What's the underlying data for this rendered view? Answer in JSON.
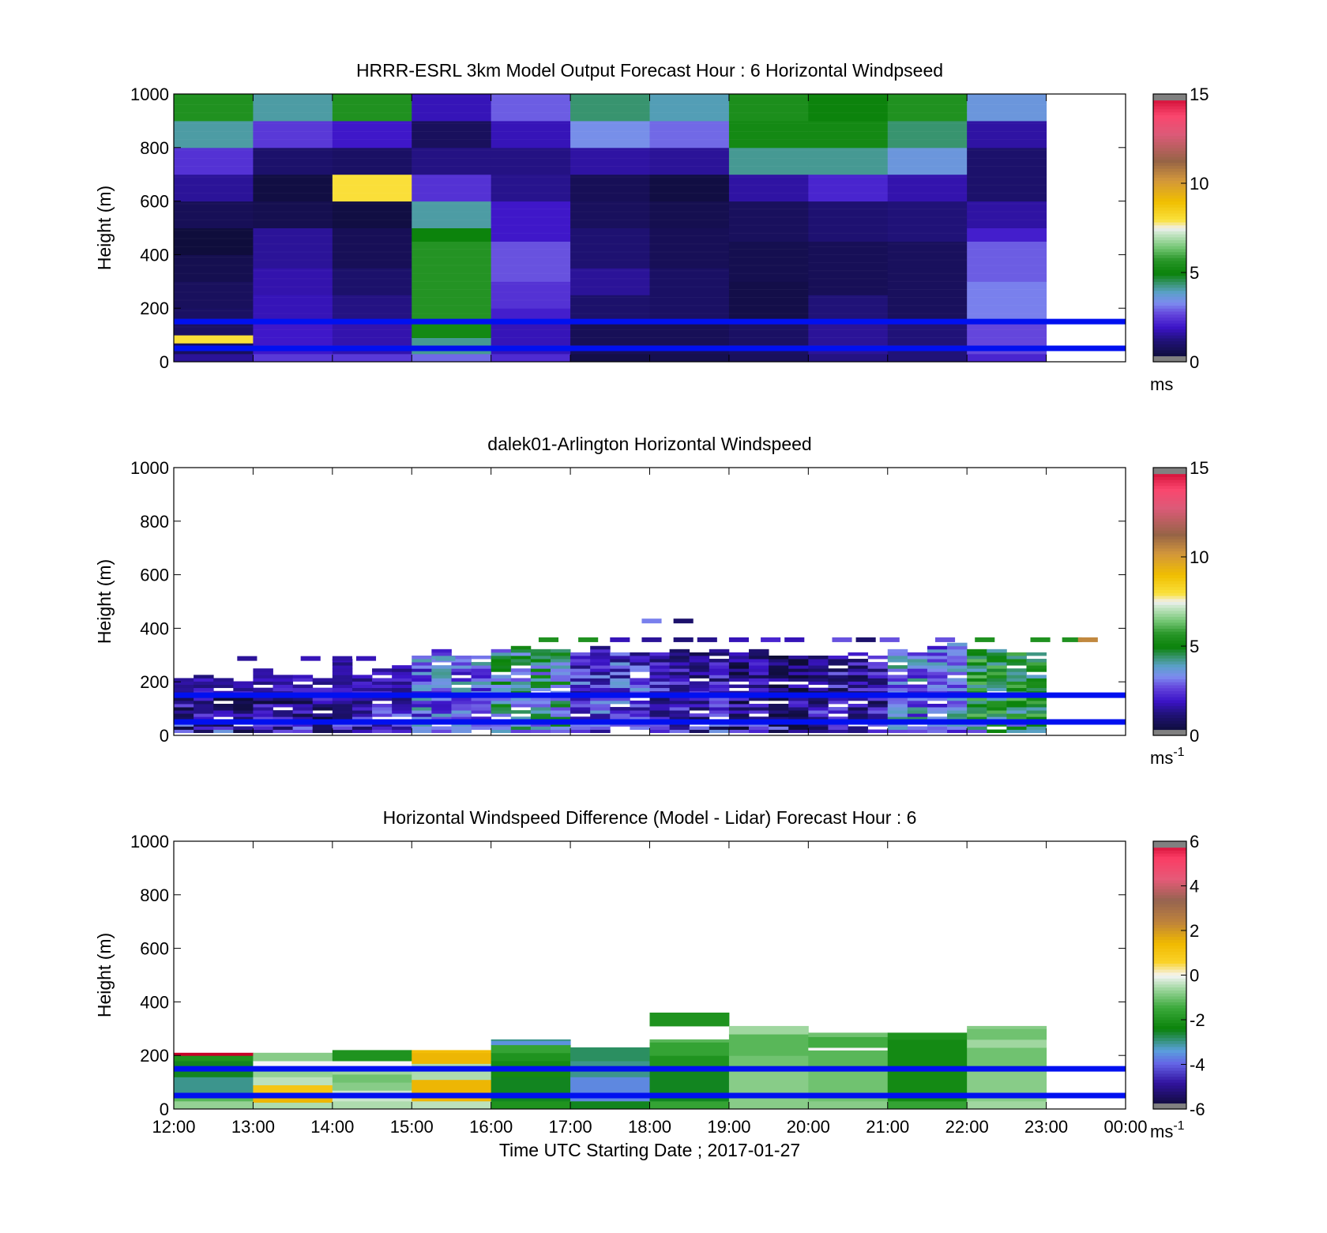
{
  "chart_data": [
    {
      "type": "heatmap",
      "title": "HRRR-ESRL 3km Model Output   Forecast Hour : 6 Horizontal Windpseed",
      "ylabel": "Height (m)",
      "ylim": [
        0,
        1000
      ],
      "yticks": [
        "0",
        "200",
        "400",
        "600",
        "800",
        "1000"
      ],
      "xticks": [],
      "x_range_utc_hours": [
        12,
        24
      ],
      "colorbar": {
        "range": [
          0,
          15
        ],
        "ticks": [
          "0",
          "5",
          "10",
          "15"
        ],
        "unit": "ms",
        "unit_sup": ""
      },
      "reference_lines_m": [
        50,
        150
      ],
      "reference_line_color": "#0010f0",
      "cells_hourly_bins_from_12utc": [
        [
          [
            0,
            30,
            1.5
          ],
          [
            30,
            70,
            0.8
          ],
          [
            70,
            100,
            8.0
          ],
          [
            100,
            200,
            0.9
          ],
          [
            200,
            300,
            0.8
          ],
          [
            300,
            400,
            0.6
          ],
          [
            400,
            500,
            0.3
          ],
          [
            500,
            600,
            0.7
          ],
          [
            600,
            700,
            1.5
          ],
          [
            700,
            800,
            2.4
          ],
          [
            800,
            900,
            4.1
          ],
          [
            900,
            1000,
            5.5
          ]
        ],
        [
          [
            0,
            30,
            2.5
          ],
          [
            30,
            150,
            2.0
          ],
          [
            150,
            250,
            1.8
          ],
          [
            250,
            350,
            1.7
          ],
          [
            350,
            500,
            1.5
          ],
          [
            500,
            600,
            0.6
          ],
          [
            600,
            700,
            0.4
          ],
          [
            700,
            800,
            1.0
          ],
          [
            800,
            900,
            2.5
          ],
          [
            900,
            1000,
            4.1
          ]
        ],
        [
          [
            0,
            30,
            2.5
          ],
          [
            30,
            150,
            1.7
          ],
          [
            150,
            250,
            1.3
          ],
          [
            250,
            350,
            1.0
          ],
          [
            350,
            500,
            0.7
          ],
          [
            500,
            600,
            0.4
          ],
          [
            600,
            700,
            8.0
          ],
          [
            700,
            800,
            0.9
          ],
          [
            800,
            900,
            2.0
          ],
          [
            900,
            1000,
            5.5
          ]
        ],
        [
          [
            0,
            30,
            3.0
          ],
          [
            30,
            90,
            4.2
          ],
          [
            90,
            150,
            5.2
          ],
          [
            150,
            450,
            5.6
          ],
          [
            450,
            500,
            5.0
          ],
          [
            500,
            600,
            4.1
          ],
          [
            600,
            700,
            2.4
          ],
          [
            700,
            800,
            1.3
          ],
          [
            800,
            900,
            0.8
          ],
          [
            900,
            1000,
            1.8
          ]
        ],
        [
          [
            0,
            30,
            2.3
          ],
          [
            30,
            150,
            1.8
          ],
          [
            150,
            200,
            2.1
          ],
          [
            200,
            300,
            2.4
          ],
          [
            300,
            450,
            2.8
          ],
          [
            450,
            600,
            2.0
          ],
          [
            600,
            700,
            1.4
          ],
          [
            700,
            800,
            1.3
          ],
          [
            800,
            900,
            1.8
          ],
          [
            900,
            1000,
            2.9
          ]
        ],
        [
          [
            0,
            30,
            0.5
          ],
          [
            30,
            150,
            0.7
          ],
          [
            150,
            250,
            1.0
          ],
          [
            250,
            350,
            1.5
          ],
          [
            350,
            500,
            1.1
          ],
          [
            500,
            600,
            0.8
          ],
          [
            600,
            700,
            0.7
          ],
          [
            700,
            800,
            1.6
          ],
          [
            800,
            900,
            3.4
          ],
          [
            900,
            1000,
            4.4
          ]
        ],
        [
          [
            0,
            30,
            0.6
          ],
          [
            30,
            150,
            0.7
          ],
          [
            150,
            250,
            0.9
          ],
          [
            250,
            350,
            0.9
          ],
          [
            350,
            500,
            0.7
          ],
          [
            500,
            600,
            0.6
          ],
          [
            600,
            700,
            0.4
          ],
          [
            700,
            800,
            1.5
          ],
          [
            800,
            900,
            3.0
          ],
          [
            900,
            1000,
            4.0
          ]
        ],
        [
          [
            0,
            30,
            0.8
          ],
          [
            30,
            150,
            0.9
          ],
          [
            150,
            300,
            0.5
          ],
          [
            300,
            450,
            0.6
          ],
          [
            450,
            600,
            0.8
          ],
          [
            600,
            700,
            1.6
          ],
          [
            700,
            800,
            4.2
          ],
          [
            800,
            900,
            5.2
          ],
          [
            900,
            1000,
            5.4
          ]
        ],
        [
          [
            0,
            30,
            1.3
          ],
          [
            30,
            150,
            1.5
          ],
          [
            150,
            250,
            1.2
          ],
          [
            250,
            450,
            0.7
          ],
          [
            450,
            600,
            1.1
          ],
          [
            600,
            700,
            2.2
          ],
          [
            700,
            800,
            4.2
          ],
          [
            800,
            900,
            5.2
          ],
          [
            900,
            1000,
            5.0
          ]
        ],
        [
          [
            0,
            30,
            1.2
          ],
          [
            30,
            150,
            1.2
          ],
          [
            150,
            350,
            0.8
          ],
          [
            350,
            450,
            0.8
          ],
          [
            450,
            600,
            1.2
          ],
          [
            600,
            700,
            1.7
          ],
          [
            700,
            800,
            3.6
          ],
          [
            800,
            900,
            4.4
          ],
          [
            900,
            1000,
            5.5
          ]
        ],
        [
          [
            0,
            30,
            2.2
          ],
          [
            30,
            150,
            2.7
          ],
          [
            150,
            300,
            3.2
          ],
          [
            300,
            450,
            2.9
          ],
          [
            450,
            500,
            2.1
          ],
          [
            500,
            600,
            1.6
          ],
          [
            600,
            700,
            1.0
          ],
          [
            700,
            800,
            1.0
          ],
          [
            800,
            900,
            1.6
          ],
          [
            900,
            1000,
            3.6
          ]
        ]
      ]
    },
    {
      "type": "heatmap",
      "title": "dalek01-Arlington  Horizontal Windspeed",
      "ylabel": "Height (m)",
      "ylim": [
        0,
        1000
      ],
      "yticks": [
        "0",
        "200",
        "400",
        "600",
        "800",
        "1000"
      ],
      "xticks": [],
      "x_range_utc_hours": [
        12,
        24
      ],
      "colorbar": {
        "range": [
          0,
          15
        ],
        "ticks": [
          "0",
          "5",
          "10",
          "15"
        ],
        "unit": "ms",
        "unit_sup": "-1"
      },
      "reference_lines_m": [
        50,
        150
      ],
      "reference_line_color": "#0010f0",
      "data_top_m_per_hour": [
        210,
        225,
        260,
        300,
        330,
        320,
        310,
        300,
        300,
        320,
        310
      ],
      "mean_speed_per_hour": [
        1.5,
        1.5,
        2.0,
        3.0,
        4.0,
        2.5,
        1.8,
        1.2,
        1.8,
        3.2,
        5.0
      ]
    },
    {
      "type": "heatmap",
      "title": "Horizontal Windspeed Difference (Model - Lidar) Forecast Hour : 6",
      "xlabel": "Time UTC  Starting Date ; 2017-01-27",
      "ylabel": "Height (m)",
      "ylim": [
        0,
        1000
      ],
      "yticks": [
        "0",
        "200",
        "400",
        "600",
        "800",
        "1000"
      ],
      "xticks": [
        "12:00",
        "13:00",
        "14:00",
        "15:00",
        "16:00",
        "17:00",
        "18:00",
        "19:00",
        "20:00",
        "21:00",
        "22:00",
        "23:00",
        "00:00"
      ],
      "x_range_utc_hours": [
        12,
        24
      ],
      "colorbar": {
        "range": [
          -6,
          6
        ],
        "ticks": [
          "-6",
          "-4",
          "-2",
          "0",
          "2",
          "4",
          "6"
        ],
        "unit": "ms",
        "unit_sup": "-1"
      },
      "reference_lines_m": [
        50,
        150
      ],
      "reference_line_color": "#0010f0",
      "cells_hourly_bins_from_12utc": [
        [
          [
            0,
            30,
            -0.7
          ],
          [
            30,
            60,
            -1.2
          ],
          [
            60,
            120,
            -3.0
          ],
          [
            120,
            180,
            -2.5
          ],
          [
            180,
            200,
            -2.0
          ],
          [
            200,
            210,
            6.0
          ]
        ],
        [
          [
            0,
            25,
            -0.5
          ],
          [
            25,
            60,
            1.5
          ],
          [
            60,
            90,
            1.0
          ],
          [
            90,
            120,
            -0.4
          ],
          [
            120,
            160,
            -0.7
          ],
          [
            160,
            180,
            0.0
          ],
          [
            180,
            210,
            -0.8
          ]
        ],
        [
          [
            0,
            30,
            -0.5
          ],
          [
            30,
            70,
            -0.3
          ],
          [
            70,
            100,
            -0.8
          ],
          [
            100,
            130,
            -1.0
          ],
          [
            130,
            160,
            -0.6
          ],
          [
            160,
            180,
            0.0
          ],
          [
            180,
            220,
            -2.0
          ]
        ],
        [
          [
            0,
            30,
            -0.4
          ],
          [
            30,
            110,
            1.5
          ],
          [
            110,
            170,
            -0.5
          ],
          [
            170,
            210,
            1.5
          ],
          [
            210,
            220,
            1.3
          ]
        ],
        [
          [
            0,
            30,
            -2.0
          ],
          [
            30,
            120,
            -2.5
          ],
          [
            120,
            180,
            -2.2
          ],
          [
            180,
            210,
            -2.0
          ],
          [
            210,
            240,
            -1.6
          ],
          [
            240,
            255,
            -3.5
          ],
          [
            255,
            260,
            -3.0
          ]
        ],
        [
          [
            0,
            30,
            -2.5
          ],
          [
            30,
            120,
            -3.6
          ],
          [
            120,
            180,
            -3.0
          ],
          [
            180,
            230,
            -2.8
          ]
        ],
        [
          [
            0,
            30,
            -1.6
          ],
          [
            30,
            150,
            -2.5
          ],
          [
            150,
            200,
            -2.0
          ],
          [
            200,
            250,
            -1.6
          ],
          [
            250,
            260,
            -1.2
          ],
          [
            310,
            360,
            -2.0
          ]
        ],
        [
          [
            0,
            30,
            -0.8
          ],
          [
            30,
            150,
            -0.8
          ],
          [
            150,
            200,
            -1.0
          ],
          [
            200,
            280,
            -1.2
          ],
          [
            280,
            310,
            -0.6
          ]
        ],
        [
          [
            0,
            30,
            -0.8
          ],
          [
            30,
            150,
            -1.0
          ],
          [
            150,
            220,
            -1.2
          ],
          [
            220,
            230,
            0.0
          ],
          [
            230,
            270,
            -1.4
          ],
          [
            270,
            285,
            -1.0
          ]
        ],
        [
          [
            0,
            30,
            -1.6
          ],
          [
            30,
            150,
            -2.2
          ],
          [
            150,
            260,
            -2.2
          ],
          [
            260,
            285,
            -2.0
          ]
        ],
        [
          [
            0,
            30,
            -0.6
          ],
          [
            30,
            150,
            -0.8
          ],
          [
            150,
            230,
            -1.0
          ],
          [
            230,
            260,
            -0.6
          ],
          [
            260,
            300,
            -1.0
          ],
          [
            300,
            310,
            -0.8
          ]
        ]
      ]
    }
  ]
}
